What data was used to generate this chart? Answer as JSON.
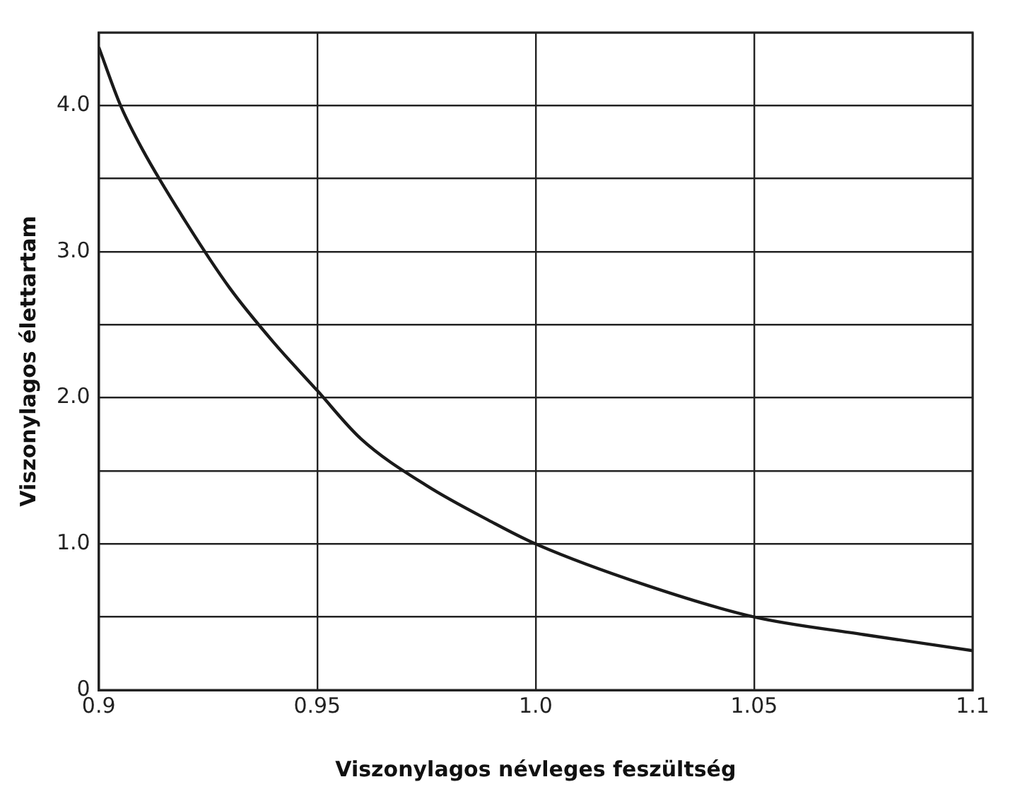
{
  "chart_data": {
    "type": "line",
    "xlabel": "Viszonylagos névleges feszültség",
    "ylabel": "Viszonylagos élettartam",
    "x": [
      0.9,
      0.905,
      0.91,
      0.92,
      0.93,
      0.94,
      0.95,
      0.96,
      0.975,
      0.99,
      1.0,
      1.025,
      1.05,
      1.075,
      1.1
    ],
    "series": [
      {
        "color": "#1a1a1a",
        "values": [
          4.4,
          4.0,
          3.7,
          3.2,
          2.75,
          2.38,
          2.05,
          1.72,
          1.4,
          1.15,
          1.0,
          0.72,
          0.5,
          0.38,
          0.27
        ]
      }
    ],
    "xlim": [
      0.9,
      1.1
    ],
    "xticks": [
      0.9,
      0.95,
      {
        "value": 1.0,
        "label": "1.0"
      },
      1.05,
      1.1
    ],
    "ylim": [
      0,
      4.5
    ],
    "yticks": [
      0,
      {
        "value": 0.5,
        "label": null
      },
      {
        "value": 1.0,
        "label": "1.0"
      },
      {
        "value": 1.5,
        "label": null
      },
      {
        "value": 2.0,
        "label": "2.0"
      },
      {
        "value": 2.5,
        "label": null
      },
      {
        "value": 3.0,
        "label": "3.0"
      },
      {
        "value": 3.5,
        "label": null
      },
      {
        "value": 4.0,
        "label": "4.0"
      },
      {
        "value": 4.5,
        "label": null
      }
    ],
    "grid": true,
    "legend": false,
    "marker": "none",
    "line_style": "solid"
  }
}
